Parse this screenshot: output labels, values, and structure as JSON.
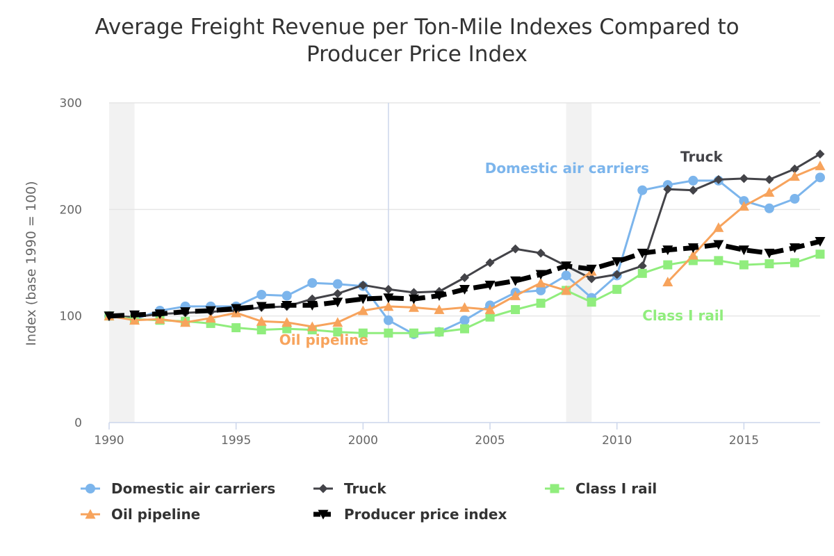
{
  "chart_data": {
    "type": "line",
    "title": "Average Freight Revenue per Ton-Mile Indexes Compared to Producer Price Index",
    "title_lines": [
      "Average Freight Revenue per Ton-Mile Indexes Compared to",
      "Producer Price Index"
    ],
    "xlabel": "",
    "ylabel": "Index (base 1990 = 100)",
    "xlim": [
      1990,
      2018
    ],
    "ylim": [
      0,
      300
    ],
    "x_ticks": [
      1990,
      1995,
      2000,
      2005,
      2010,
      2015
    ],
    "y_ticks": [
      0,
      100,
      200,
      300
    ],
    "grid": true,
    "x": [
      1990,
      1991,
      1992,
      1993,
      1994,
      1995,
      1996,
      1997,
      1998,
      1999,
      2000,
      2001,
      2002,
      2003,
      2004,
      2005,
      2006,
      2007,
      2008,
      2009,
      2010,
      2011,
      2012,
      2013,
      2014,
      2015,
      2016,
      2017,
      2018
    ],
    "bands": [
      [
        1990,
        1991
      ],
      [
        2008,
        2009
      ]
    ],
    "crosshair_x": 2001,
    "series": [
      {
        "name": "Domestic air carriers",
        "color": "#7cb5ec",
        "marker": "circle",
        "dash": false,
        "values": [
          100,
          97,
          105,
          109,
          109,
          109,
          120,
          119,
          131,
          130,
          128,
          96,
          83,
          85,
          96,
          110,
          122,
          124,
          138,
          117,
          138,
          218,
          223,
          227,
          227,
          208,
          201,
          210,
          230
        ]
      },
      {
        "name": "Truck",
        "color": "#434348",
        "marker": "diamond",
        "dash": false,
        "values": [
          100,
          99,
          102,
          103,
          104,
          105,
          108,
          109,
          116,
          121,
          129,
          125,
          122,
          123,
          136,
          150,
          163,
          159,
          147,
          135,
          139,
          147,
          219,
          218,
          228,
          229,
          228,
          238,
          252
        ]
      },
      {
        "name": "Class I rail",
        "color": "#90ed7d",
        "marker": "square",
        "dash": false,
        "values": [
          100,
          97,
          96,
          95,
          93,
          89,
          87,
          88,
          87,
          85,
          84,
          84,
          84,
          85,
          88,
          99,
          106,
          112,
          124,
          113,
          125,
          140,
          148,
          152,
          152,
          148,
          149,
          150,
          158
        ]
      },
      {
        "name": "Oil pipeline",
        "color": "#f7a35c",
        "marker": "triangle",
        "dash": false,
        "values": [
          100,
          96,
          97,
          94,
          98,
          103,
          95,
          94,
          90,
          94,
          105,
          109,
          108,
          106,
          108,
          106,
          119,
          131,
          124,
          142,
          null,
          null,
          132,
          157,
          183,
          203,
          216,
          231,
          241
        ]
      },
      {
        "name": "Producer price index",
        "color": "#000000",
        "marker": "triangle-down",
        "dash": true,
        "values": [
          100,
          101,
          102,
          104,
          105,
          107,
          109,
          110,
          110,
          113,
          116,
          117,
          116,
          119,
          125,
          129,
          133,
          139,
          147,
          144,
          151,
          159,
          162,
          164,
          167,
          162,
          159,
          164,
          170
        ]
      }
    ],
    "annotations": [
      {
        "text": "Domestic air carriers",
        "color": "#7cb5ec",
        "x": 2004.8,
        "y": 234
      },
      {
        "text": "Truck",
        "color": "#434348",
        "x": 2012.5,
        "y": 245
      },
      {
        "text": "Class I rail",
        "color": "#90ed7d",
        "x": 2011.0,
        "y": 96
      },
      {
        "text": "Oil pipeline",
        "color": "#f7a35c",
        "x": 1996.7,
        "y": 73
      }
    ],
    "legend": {
      "placement": "bottom",
      "items": [
        "Domestic air carriers",
        "Truck",
        "Class I rail",
        "Oil pipeline",
        "Producer price index"
      ]
    }
  }
}
